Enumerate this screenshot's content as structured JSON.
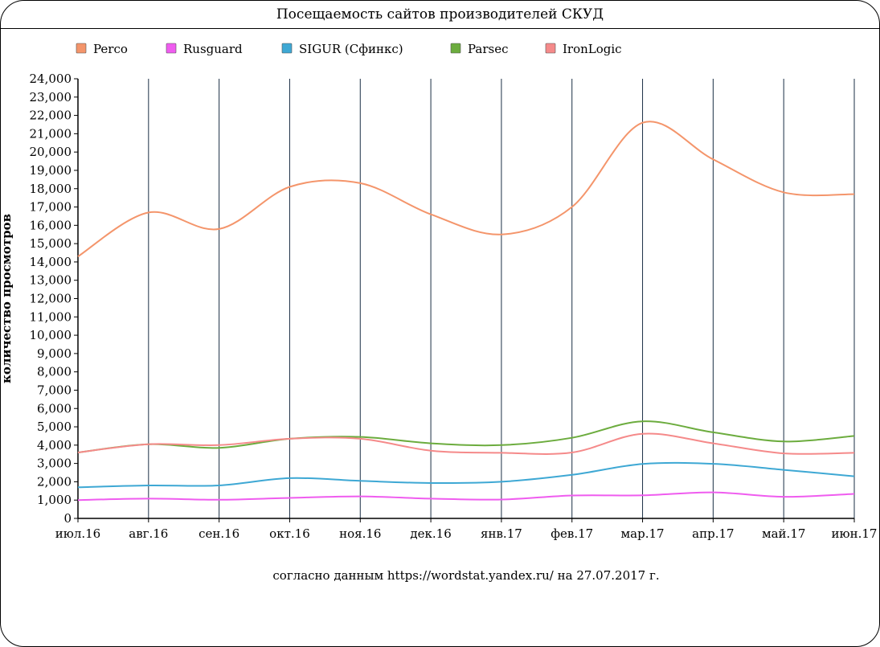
{
  "title": "Посещаемость сайтов производителей СКУД",
  "source_note": "согласно данным https://wordstat.yandex.ru/ на 27.07.2017 г.",
  "chart_data": {
    "type": "line",
    "title": "Посещаемость сайтов производителей СКУД",
    "xlabel": "",
    "ylabel": "количество просмотров",
    "ylim": [
      0,
      24000
    ],
    "y_ticks": [
      "0",
      "1,000",
      "2,000",
      "3,000",
      "4,000",
      "5,000",
      "6,000",
      "7,000",
      "8,000",
      "9,000",
      "10,000",
      "11,000",
      "12,000",
      "13,000",
      "14,000",
      "15,000",
      "16,000",
      "17,000",
      "18,000",
      "19,000",
      "20,000",
      "21,000",
      "22,000",
      "23,000",
      "24,000"
    ],
    "categories": [
      "июл.16",
      "авг.16",
      "сен.16",
      "окт.16",
      "ноя.16",
      "дек.16",
      "янв.17",
      "фев.17",
      "мар.17",
      "апр.17",
      "май.17",
      "июн.17"
    ],
    "legend_position": "top",
    "series": [
      {
        "name": "Perco",
        "color": "#f4956b",
        "values": [
          14300,
          16700,
          15800,
          18100,
          18300,
          16600,
          15500,
          17000,
          21600,
          19600,
          17800,
          17700
        ]
      },
      {
        "name": "Rusguard",
        "color": "#ef5cef",
        "values": [
          1000,
          1080,
          1020,
          1120,
          1200,
          1080,
          1030,
          1250,
          1260,
          1420,
          1180,
          1340
        ]
      },
      {
        "name": "SIGUR (Сфинкс)",
        "color": "#3ea8d4",
        "values": [
          1700,
          1800,
          1800,
          2200,
          2050,
          1930,
          2000,
          2380,
          2970,
          2980,
          2650,
          2300
        ]
      },
      {
        "name": "Parsec",
        "color": "#6cac3e",
        "values": [
          3600,
          4050,
          3850,
          4350,
          4450,
          4100,
          4000,
          4400,
          5300,
          4700,
          4200,
          4500
        ]
      },
      {
        "name": "IronLogic",
        "color": "#f58a8a",
        "values": [
          3600,
          4050,
          4000,
          4350,
          4350,
          3700,
          3580,
          3600,
          4620,
          4100,
          3550,
          3580
        ]
      }
    ]
  }
}
